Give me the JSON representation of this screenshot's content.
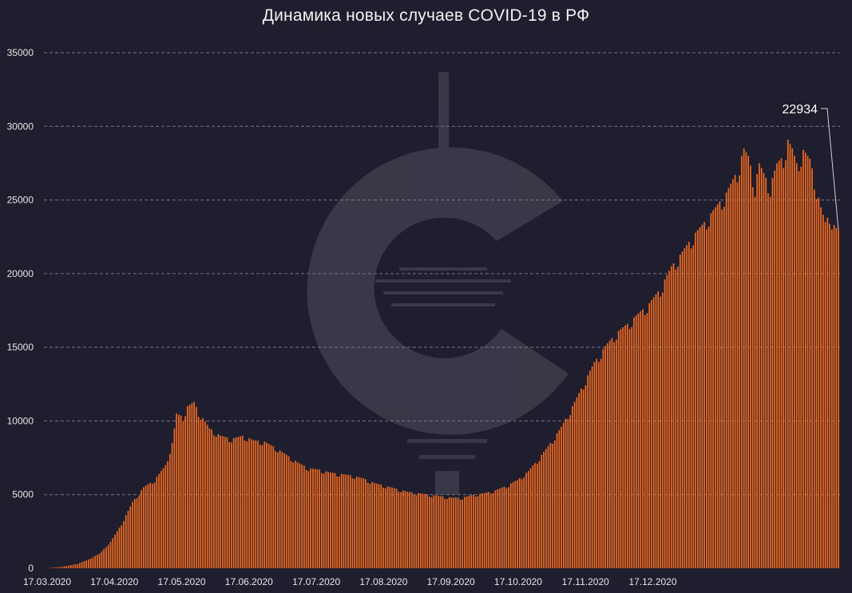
{
  "colors": {
    "background": "#1f1e2e",
    "bar": "#f26a1f",
    "grid": "#8a8a9a",
    "text": "#e6e6e6"
  },
  "watermark": {
    "icon": "c-logo-watermark-icon"
  },
  "chart_data": {
    "type": "bar",
    "title": "Динамика новых случаев COVID-19 в РФ",
    "xlabel": "",
    "ylabel": "",
    "ylim": [
      0,
      35000
    ],
    "grid": true,
    "yticks": [
      "0",
      "5000",
      "10000",
      "15000",
      "20000",
      "25000",
      "30000",
      "35000"
    ],
    "xticks": [
      "17.03.2020",
      "17.04.2020",
      "17.05.2020",
      "17.06.2020",
      "17.07.2020",
      "17.08.2020",
      "17.09.2020",
      "17.10.2020",
      "17.11.2020",
      "17.12.2020"
    ],
    "annotation": {
      "text": "22934",
      "value": 22934,
      "target": "last bar"
    },
    "anchors": [
      [
        0,
        0
      ],
      [
        5,
        50
      ],
      [
        10,
        150
      ],
      [
        15,
        300
      ],
      [
        20,
        600
      ],
      [
        25,
        1000
      ],
      [
        30,
        1800
      ],
      [
        35,
        3000
      ],
      [
        40,
        4500
      ],
      [
        45,
        5500
      ],
      [
        50,
        6000
      ],
      [
        55,
        7000
      ],
      [
        58,
        8500
      ],
      [
        60,
        10500
      ],
      [
        63,
        10300
      ],
      [
        65,
        11000
      ],
      [
        68,
        11300
      ],
      [
        70,
        10600
      ],
      [
        72,
        10200
      ],
      [
        75,
        9500
      ],
      [
        80,
        9000
      ],
      [
        85,
        8800
      ],
      [
        90,
        9000
      ],
      [
        95,
        8700
      ],
      [
        100,
        8600
      ],
      [
        105,
        8200
      ],
      [
        110,
        7700
      ],
      [
        115,
        7200
      ],
      [
        120,
        6800
      ],
      [
        125,
        6700
      ],
      [
        130,
        6500
      ],
      [
        135,
        6400
      ],
      [
        140,
        6300
      ],
      [
        145,
        6100
      ],
      [
        150,
        5800
      ],
      [
        155,
        5600
      ],
      [
        160,
        5400
      ],
      [
        165,
        5200
      ],
      [
        170,
        5100
      ],
      [
        175,
        5000
      ],
      [
        180,
        4900
      ],
      [
        185,
        4800
      ],
      [
        190,
        4800
      ],
      [
        195,
        5000
      ],
      [
        200,
        5100
      ],
      [
        205,
        5300
      ],
      [
        210,
        5600
      ],
      [
        215,
        6000
      ],
      [
        220,
        6600
      ],
      [
        225,
        7500
      ],
      [
        230,
        8500
      ],
      [
        235,
        9600
      ],
      [
        240,
        11000
      ],
      [
        245,
        12500
      ],
      [
        250,
        14000
      ],
      [
        255,
        15100
      ],
      [
        260,
        16000
      ],
      [
        265,
        16600
      ],
      [
        270,
        17300
      ],
      [
        275,
        18000
      ],
      [
        280,
        19000
      ],
      [
        285,
        20500
      ],
      [
        290,
        21500
      ],
      [
        295,
        22600
      ],
      [
        300,
        23500
      ],
      [
        305,
        24500
      ],
      [
        310,
        25500
      ],
      [
        315,
        27000
      ],
      [
        318,
        28500
      ],
      [
        320,
        28000
      ],
      [
        323,
        26000
      ],
      [
        325,
        27500
      ],
      [
        328,
        26500
      ],
      [
        330,
        26000
      ],
      [
        333,
        27500
      ],
      [
        336,
        28000
      ],
      [
        338,
        29100
      ],
      [
        340,
        28500
      ],
      [
        342,
        27500
      ],
      [
        345,
        28400
      ],
      [
        348,
        27800
      ],
      [
        350,
        26500
      ],
      [
        353,
        24500
      ],
      [
        355,
        23500
      ],
      [
        357,
        24100
      ],
      [
        359,
        23300
      ],
      [
        361,
        22934
      ]
    ]
  }
}
